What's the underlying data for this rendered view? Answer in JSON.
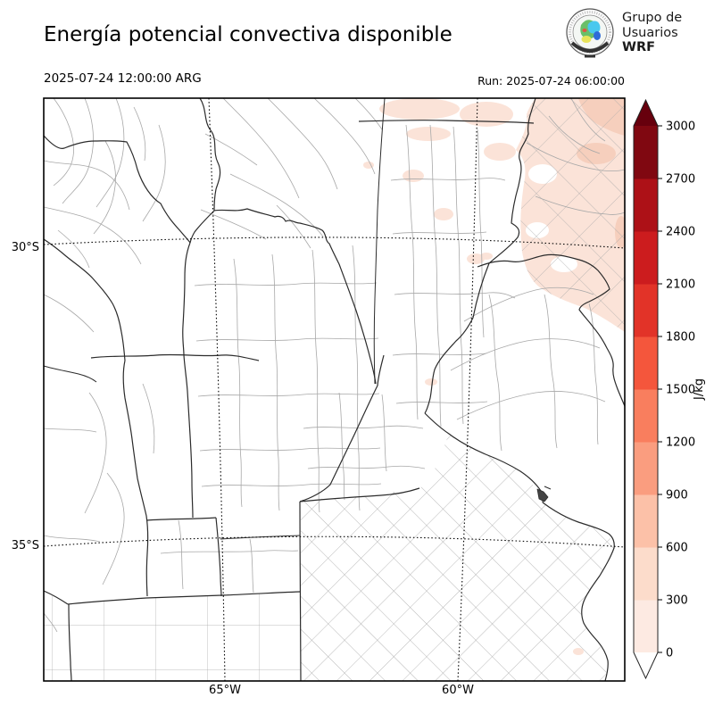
{
  "header": {
    "title": "Energía potencial convectiva disponible",
    "valid_time": "2025-07-24 12:00:00 ARG",
    "run_label": "Run: 2025-07-24 06:00:00",
    "logo": {
      "line1": "Grupo de",
      "line2": "Usuarios",
      "line3": "WRF"
    }
  },
  "map": {
    "lat_labels": [
      "30°S",
      "35°S"
    ],
    "lon_labels": [
      "65°W",
      "60°W"
    ],
    "shading": {
      "light_pink": "#fbe3d8",
      "medium_pink": "#f6cfbd"
    }
  },
  "colorbar": {
    "units": "J/kg",
    "ticks": [
      0,
      300,
      600,
      900,
      1200,
      1500,
      1800,
      2100,
      2400,
      2700,
      3000
    ],
    "colors": [
      "#fdeae2",
      "#fcdccb",
      "#fcc1a8",
      "#fa9d7f",
      "#f97e5e",
      "#f4563c",
      "#e23328",
      "#cc1c1e",
      "#ad1117",
      "#800811"
    ],
    "over_color": "#67000d",
    "under_color": "#ffffff"
  }
}
